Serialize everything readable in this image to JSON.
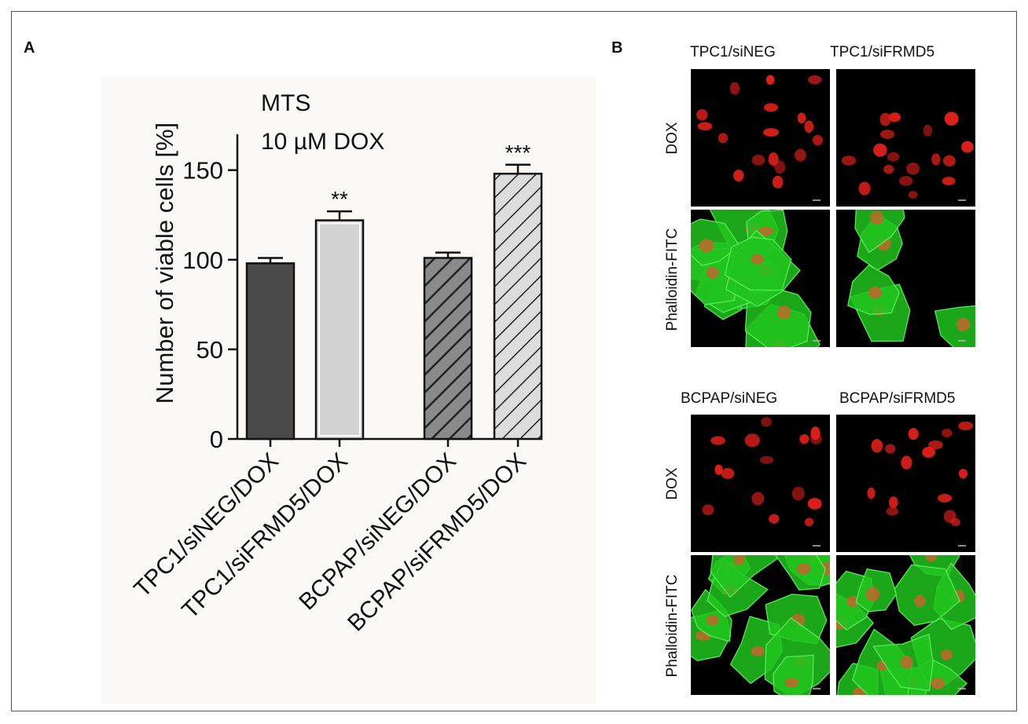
{
  "panel_a_label": "A",
  "panel_b_label": "B",
  "chart_data": {
    "type": "bar",
    "annotation_lines": [
      "MTS",
      "10 µM DOX"
    ],
    "ylabel": "Number of viable cells [%]",
    "xlabel": "",
    "ylim": [
      0,
      170
    ],
    "yticks": [
      0,
      50,
      100,
      150
    ],
    "grid": false,
    "categories": [
      "TPC1/siNEG/DOX",
      "TPC1/siFRMD5/DOX",
      "BCPAP/siNEG/DOX",
      "BCPAP/siFRMD5/DOX"
    ],
    "values": [
      98,
      122,
      101,
      148
    ],
    "errors": [
      3,
      5,
      3,
      5
    ],
    "significance": [
      "",
      "**",
      "",
      "***"
    ],
    "colors": [
      "#4a4a4a",
      "#d3d3d3",
      "#8a8a8a",
      "#d9d9d9"
    ],
    "hatched": [
      false,
      false,
      true,
      true
    ]
  },
  "micrographs": {
    "column_titles_top": [
      "TPC1/siNEG",
      "TPC1/siFRMD5"
    ],
    "column_titles_bottom": [
      "BCPAP/siNEG",
      "BCPAP/siFRMD5"
    ],
    "row_labels": [
      "DOX",
      "Phalloidin-FITC"
    ],
    "channel_colors": {
      "dox": "#e0201a",
      "phalloidin": "#21c41f",
      "background": "#000000"
    }
  }
}
